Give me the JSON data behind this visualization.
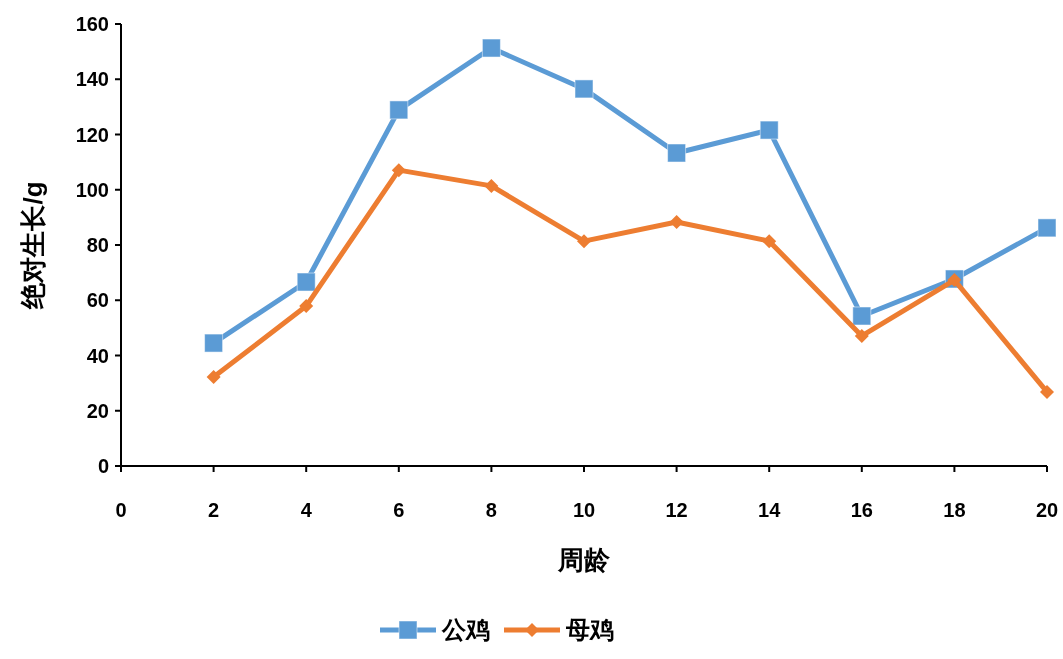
{
  "chart_data": {
    "type": "line",
    "xlabel": "周龄",
    "ylabel": "绝对生长/g",
    "x": [
      2,
      4,
      6,
      8,
      10,
      12,
      14,
      16,
      18,
      20
    ],
    "xlim": [
      0,
      20
    ],
    "xticks": [
      0,
      2,
      4,
      6,
      8,
      10,
      12,
      14,
      16,
      18,
      20
    ],
    "ylim": [
      0,
      160
    ],
    "yticks": [
      0,
      20,
      40,
      60,
      80,
      100,
      120,
      140,
      160
    ],
    "legend": "bottom",
    "line_style": "solid",
    "series": [
      {
        "name": "公鸡",
        "color": "#5b9bd5",
        "marker": "square",
        "values": [
          44.5,
          66.6,
          128.9,
          151.3,
          136.5,
          113.3,
          121.6,
          54.3,
          67.7,
          86.2
        ]
      },
      {
        "name": "母鸡",
        "color": "#ed7d31",
        "marker": "diamond",
        "values": [
          32.2,
          57.9,
          107.1,
          101.4,
          81.4,
          88.3,
          81.4,
          47.1,
          67.3,
          26.8
        ]
      }
    ]
  }
}
